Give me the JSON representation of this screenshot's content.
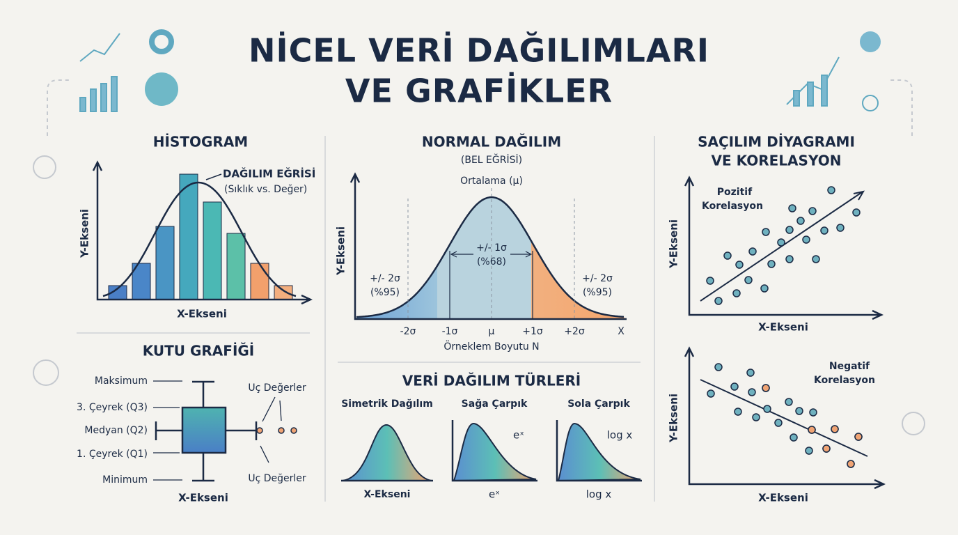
{
  "header": {
    "title_line1": "NİCEL VERİ DAĞILIMLARI",
    "title_line2": "VE GRAFİKLER"
  },
  "histogram": {
    "title": "HİSTOGRAM",
    "curve_label": "DAĞILIM EĞRİSİ",
    "curve_sublabel": "(Sıklık vs. Değer)",
    "y_axis": "Y-Ekseni",
    "x_axis": "X-Ekseni"
  },
  "box_plot": {
    "title": "KUTU GRAFİĞİ",
    "labels": [
      "Maksimum",
      "3. Çeyrek (Q3)",
      "Medyan (Q2)",
      "1. Çeyrek (Q1)",
      "Minimum"
    ],
    "outliers_top": "Uç Değerler",
    "outliers_bottom": "Uç Değerler",
    "x_axis": "X-Ekseni"
  },
  "normal": {
    "title": "NORMAL DAĞILIM",
    "subtitle": "(BEL EĞRİSİ)",
    "mean_label": "Ortalama (μ)",
    "y_axis": "Y-Ekseni",
    "x_ticks": [
      "-2σ",
      "-1σ",
      "μ",
      "+1σ",
      "+2σ",
      "X"
    ],
    "x_axis": "Örneklem Boyutu N",
    "band_1": "+/- 1σ",
    "band_1_pct": "(%68)",
    "band_2_left": "+/- 2σ",
    "band_2_left_pct": "(%95)",
    "band_2_right": "+/- 2σ",
    "band_2_right_pct": "(%95)"
  },
  "types": {
    "title": "VERİ DAĞILIM TÜRLERİ",
    "items": [
      {
        "label": "Simetrik Dağılım",
        "axis": "X-Ekseni"
      },
      {
        "label": "Sağa Çarpık",
        "formula": "eˣ",
        "axis": "eˣ"
      },
      {
        "label": "Sola Çarpık",
        "formula": "log x",
        "axis": "log x"
      }
    ]
  },
  "scatter": {
    "title_line1": "SAÇILIM DİYAGRAMI",
    "title_line2": "VE KORELASYON",
    "positive": {
      "label_line1": "Pozitif",
      "label_line2": "Korelasyon",
      "y_axis": "Y-Ekseni",
      "x_axis": "X-Ekseni"
    },
    "negative": {
      "label_line1": "Negatif",
      "label_line2": "Korelasyon",
      "y_axis": "Y-Ekseni",
      "x_axis": "X-Ekseni"
    }
  }
}
